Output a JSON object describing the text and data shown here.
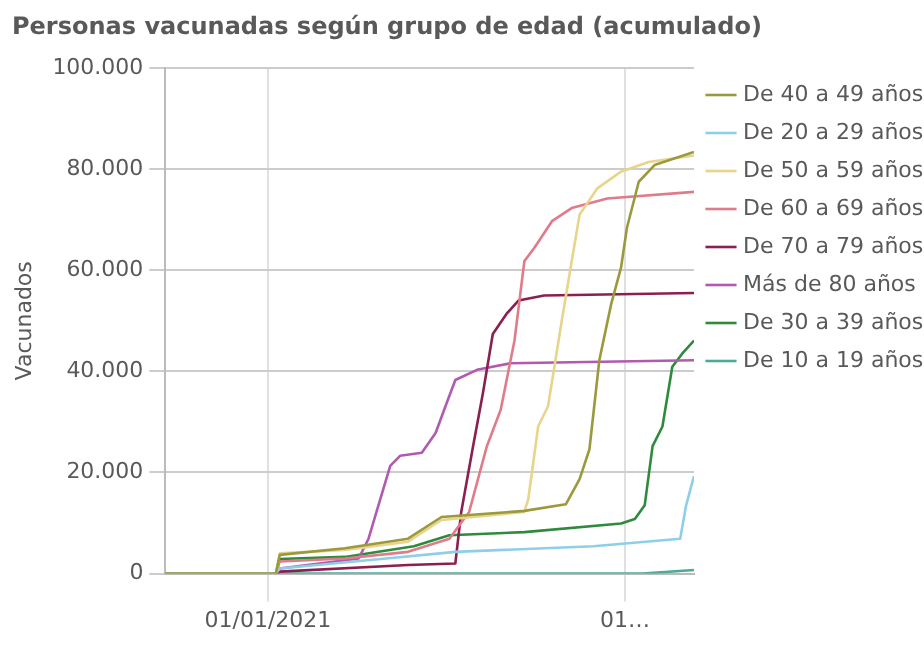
{
  "chart_data": {
    "type": "line",
    "title": "Personas vacunadas según grupo de edad (acumulado)",
    "ylabel": "Vacunados",
    "xlim": [
      "2020-11-10",
      "2021-08-05"
    ],
    "xticks": [
      {
        "value": "2021-01-01",
        "label": "01/01/2021"
      },
      {
        "value": "2021-07-01",
        "label": "01…"
      }
    ],
    "ylim": [
      0,
      100000
    ],
    "yticks": [
      0,
      {
        "value": 20000,
        "label": "20.000"
      },
      {
        "value": 40000,
        "label": "40.000"
      },
      {
        "value": 60000,
        "label": "60.000"
      },
      {
        "value": 80000,
        "label": "80.000"
      },
      {
        "value": 100000,
        "label": "100.000"
      }
    ],
    "grid": true,
    "legend": "right",
    "marker": "none",
    "line_style": "solid",
    "series": [
      {
        "name": "De 40 a 49 años",
        "color": "#9a9a3c",
        "x": [
          "2020-11-10",
          "2021-01-05",
          "2021-01-07",
          "2021-02-09",
          "2021-03-13",
          "2021-03-30",
          "2021-05-11",
          "2021-06-01",
          "2021-06-08",
          "2021-06-13",
          "2021-06-18",
          "2021-06-24",
          "2021-06-29",
          "2021-07-02",
          "2021-07-08",
          "2021-07-16",
          "2021-08-05"
        ],
        "values": [
          0,
          0,
          3700,
          5000,
          6900,
          11200,
          12400,
          13700,
          18700,
          24600,
          42200,
          53300,
          60500,
          68400,
          77500,
          80800,
          83400
        ]
      },
      {
        "name": "De 20 a 29 años",
        "color": "#8ecfe8",
        "x": [
          "2020-11-10",
          "2021-01-05",
          "2021-01-07",
          "2021-03-02",
          "2021-04-06",
          "2021-06-15",
          "2021-07-29",
          "2021-08-01",
          "2021-08-05"
        ],
        "values": [
          0,
          0,
          1000,
          3000,
          4300,
          5400,
          6900,
          13500,
          19300
        ]
      },
      {
        "name": "De 50 a 59 años",
        "color": "#e8d48a",
        "x": [
          "2020-11-10",
          "2021-01-05",
          "2021-01-07",
          "2021-02-09",
          "2021-03-13",
          "2021-03-30",
          "2021-05-11",
          "2021-05-13",
          "2021-05-18",
          "2021-05-23",
          "2021-05-30",
          "2021-06-04",
          "2021-06-08",
          "2021-06-17",
          "2021-06-29",
          "2021-07-13",
          "2021-08-05"
        ],
        "values": [
          0,
          0,
          4000,
          4700,
          6300,
          10600,
          12200,
          14800,
          29100,
          33100,
          50100,
          61800,
          71000,
          76200,
          79500,
          81400,
          82700
        ]
      },
      {
        "name": "De 60 a 69 años",
        "color": "#e07b8a",
        "x": [
          "2020-11-10",
          "2021-01-05",
          "2021-01-07",
          "2021-02-09",
          "2021-03-13",
          "2021-04-03",
          "2021-04-13",
          "2021-04-22",
          "2021-04-29",
          "2021-05-06",
          "2021-05-11",
          "2021-05-16",
          "2021-05-25",
          "2021-06-04",
          "2021-06-22",
          "2021-08-05"
        ],
        "values": [
          0,
          0,
          2400,
          3000,
          4300,
          6900,
          12200,
          25200,
          32400,
          46100,
          61800,
          64400,
          69700,
          72300,
          74200,
          75500
        ]
      },
      {
        "name": "De 70 a 79 años",
        "color": "#8b1f4f",
        "x": [
          "2020-11-10",
          "2021-01-05",
          "2021-01-07",
          "2021-03-13",
          "2021-04-06",
          "2021-04-09",
          "2021-04-15",
          "2021-04-20",
          "2021-04-25",
          "2021-05-02",
          "2021-05-08",
          "2021-05-21",
          "2021-08-05"
        ],
        "values": [
          0,
          0,
          400,
          1700,
          2000,
          12200,
          25200,
          35700,
          47400,
          51400,
          54000,
          55000,
          55500
        ]
      },
      {
        "name": "Más de 80 años",
        "color": "#b05ab0",
        "x": [
          "2020-11-10",
          "2021-01-05",
          "2021-01-07",
          "2021-02-16",
          "2021-02-21",
          "2021-02-27",
          "2021-03-04",
          "2021-03-09",
          "2021-03-20",
          "2021-03-27",
          "2021-04-01",
          "2021-04-06",
          "2021-04-17",
          "2021-05-04",
          "2021-08-05"
        ],
        "values": [
          0,
          0,
          1000,
          3000,
          6900,
          14800,
          21300,
          23300,
          23900,
          27800,
          33100,
          38300,
          40300,
          41600,
          42200
        ]
      },
      {
        "name": "De 30 a 39 años",
        "color": "#2e8b3e",
        "x": [
          "2020-11-10",
          "2021-01-05",
          "2021-01-07",
          "2021-02-09",
          "2021-03-16",
          "2021-04-03",
          "2021-05-11",
          "2021-06-29",
          "2021-07-06",
          "2021-07-11",
          "2021-07-15",
          "2021-07-20",
          "2021-07-25",
          "2021-07-30",
          "2021-08-05"
        ],
        "values": [
          0,
          0,
          2900,
          3300,
          5400,
          7600,
          8200,
          9900,
          10800,
          13500,
          25200,
          29100,
          40900,
          43500,
          46100
        ]
      },
      {
        "name": "De 10 a 19 años",
        "color": "#4aab9a",
        "x": [
          "2020-11-10",
          "2021-07-10",
          "2021-08-05"
        ],
        "values": [
          0,
          0,
          700
        ]
      }
    ]
  }
}
